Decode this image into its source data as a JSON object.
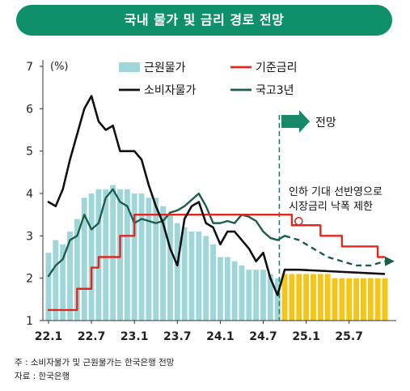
{
  "title": "국내 물가 및 금리 경로 전망",
  "notes": {
    "note1": "주 : 소비자물가 및 근원물가는 한국은행 전망",
    "note2": "자료 : 한국은행"
  },
  "chart_data": {
    "type": "bar+line",
    "y_unit": "(%)",
    "ylim": [
      1,
      7
    ],
    "y_ticks": [
      "1",
      "2",
      "3",
      "4",
      "5",
      "6",
      "7"
    ],
    "x_ticks": [
      "22.1",
      "22.7",
      "23.1",
      "23.7",
      "24.1",
      "24.7",
      "25.1",
      "25.7"
    ],
    "forecast_label": "전망",
    "annotation": "인하 기대 선반영으로\n시장금리 낙폭 제한",
    "colors": {
      "core_actual": "#9fd6d9",
      "core_forecast": "#f5c518",
      "policy_rate": "#e0281f",
      "cpi": "#111111",
      "bond": "#1d5e4b",
      "forecast_arrow": "#17896a",
      "title_bg": "#0f8f6a"
    },
    "legend": [
      {
        "name": "근원물가",
        "type": "bar"
      },
      {
        "name": "기준금리",
        "type": "line"
      },
      {
        "name": "소비자물가",
        "type": "line"
      },
      {
        "name": "국고3년",
        "type": "line"
      }
    ],
    "series": {
      "core_inflation": {
        "name": "근원물가",
        "months": [
          "22.1",
          "22.2",
          "22.3",
          "22.4",
          "22.5",
          "22.6",
          "22.7",
          "22.8",
          "22.9",
          "22.10",
          "22.11",
          "22.12",
          "23.1",
          "23.2",
          "23.3",
          "23.4",
          "23.5",
          "23.6",
          "23.7",
          "23.8",
          "23.9",
          "23.10",
          "23.11",
          "23.12",
          "24.1",
          "24.2",
          "24.3",
          "24.4",
          "24.5",
          "24.6",
          "24.7",
          "24.8",
          "24.9",
          "24.10",
          "24.11",
          "24.12",
          "25.1",
          "25.2",
          "25.3",
          "25.4",
          "25.5",
          "25.6",
          "25.7",
          "25.8",
          "25.9",
          "25.10",
          "25.11",
          "25.12"
        ],
        "values": [
          2.6,
          2.9,
          2.8,
          3.1,
          3.4,
          3.9,
          4.0,
          4.1,
          4.1,
          4.2,
          4.1,
          4.1,
          4.0,
          4.0,
          3.9,
          3.9,
          3.7,
          3.5,
          3.3,
          3.2,
          3.1,
          3.1,
          3.0,
          2.8,
          2.5,
          2.5,
          2.4,
          2.3,
          2.2,
          2.2,
          2.2,
          2.1,
          2.0,
          2.1,
          2.1,
          2.1,
          2.1,
          2.1,
          2.1,
          2.1,
          2.0,
          2.0,
          2.0,
          2.0,
          2.0,
          2.0,
          2.0,
          2.0
        ],
        "forecast_from": "24.10"
      },
      "policy_rate": {
        "name": "기준금리",
        "x": [
          "22.1",
          "22.4",
          "22.5",
          "22.7",
          "22.8",
          "22.10",
          "22.11",
          "23.1",
          "24.10",
          "24.11",
          "25.1",
          "25.3",
          "25.4",
          "25.6",
          "25.7",
          "25.10",
          "25.11",
          "25.12"
        ],
        "values": [
          1.25,
          1.25,
          1.75,
          2.25,
          2.5,
          2.5,
          3.0,
          3.5,
          3.5,
          3.25,
          3.25,
          3.0,
          3.0,
          2.75,
          2.75,
          2.75,
          2.5,
          2.5
        ],
        "forecast_from": "24.10"
      },
      "cpi": {
        "name": "소비자물가",
        "x": [
          "22.1",
          "22.2",
          "22.3",
          "22.4",
          "22.5",
          "22.6",
          "22.7",
          "22.8",
          "22.9",
          "22.10",
          "22.11",
          "22.12",
          "23.1",
          "23.2",
          "23.3",
          "23.4",
          "23.5",
          "23.6",
          "23.7",
          "23.8",
          "23.9",
          "23.10",
          "23.11",
          "23.12",
          "24.1",
          "24.2",
          "24.3",
          "24.4",
          "24.5",
          "24.6",
          "24.7",
          "24.8",
          "24.9",
          "24.10",
          "24.11",
          "24.12",
          "25.12"
        ],
        "values": [
          3.8,
          3.7,
          4.1,
          4.8,
          5.4,
          6.0,
          6.3,
          5.7,
          5.5,
          5.6,
          5.0,
          5.0,
          5.0,
          4.8,
          4.2,
          3.7,
          3.3,
          2.7,
          2.3,
          3.4,
          3.7,
          3.8,
          3.3,
          3.2,
          2.8,
          3.1,
          3.1,
          2.9,
          2.7,
          2.4,
          2.6,
          2.0,
          1.6,
          2.2,
          2.2,
          2.2,
          2.1
        ],
        "forecast_from": "24.10"
      },
      "bond_3y": {
        "name": "국고3년",
        "x": [
          "22.1",
          "22.2",
          "22.3",
          "22.4",
          "22.5",
          "22.6",
          "22.7",
          "22.8",
          "22.9",
          "22.10",
          "22.11",
          "22.12",
          "23.1",
          "23.2",
          "23.3",
          "23.4",
          "23.5",
          "23.6",
          "23.7",
          "23.8",
          "23.9",
          "23.10",
          "23.11",
          "23.12",
          "24.1",
          "24.2",
          "24.3",
          "24.4",
          "24.5",
          "24.6",
          "24.7",
          "24.8",
          "24.9",
          "24.10",
          "24.11",
          "24.12",
          "25.1",
          "25.2",
          "25.3",
          "25.4",
          "25.5",
          "25.6",
          "25.7",
          "25.8",
          "25.9",
          "25.10",
          "25.11",
          "25.12"
        ],
        "values": [
          2.05,
          2.3,
          2.45,
          2.9,
          3.0,
          3.5,
          3.15,
          3.3,
          3.9,
          4.1,
          3.8,
          3.7,
          3.3,
          3.4,
          3.35,
          3.3,
          3.35,
          3.55,
          3.6,
          3.7,
          3.85,
          4.0,
          3.7,
          3.3,
          3.3,
          3.35,
          3.3,
          3.5,
          3.45,
          3.35,
          3.1,
          2.95,
          2.9,
          3.0,
          2.95,
          2.9,
          2.8,
          2.7,
          2.6,
          2.5,
          2.45,
          2.4,
          2.35,
          2.3,
          2.3,
          2.3,
          2.35,
          2.4
        ],
        "forecast_from": "24.10"
      }
    }
  }
}
